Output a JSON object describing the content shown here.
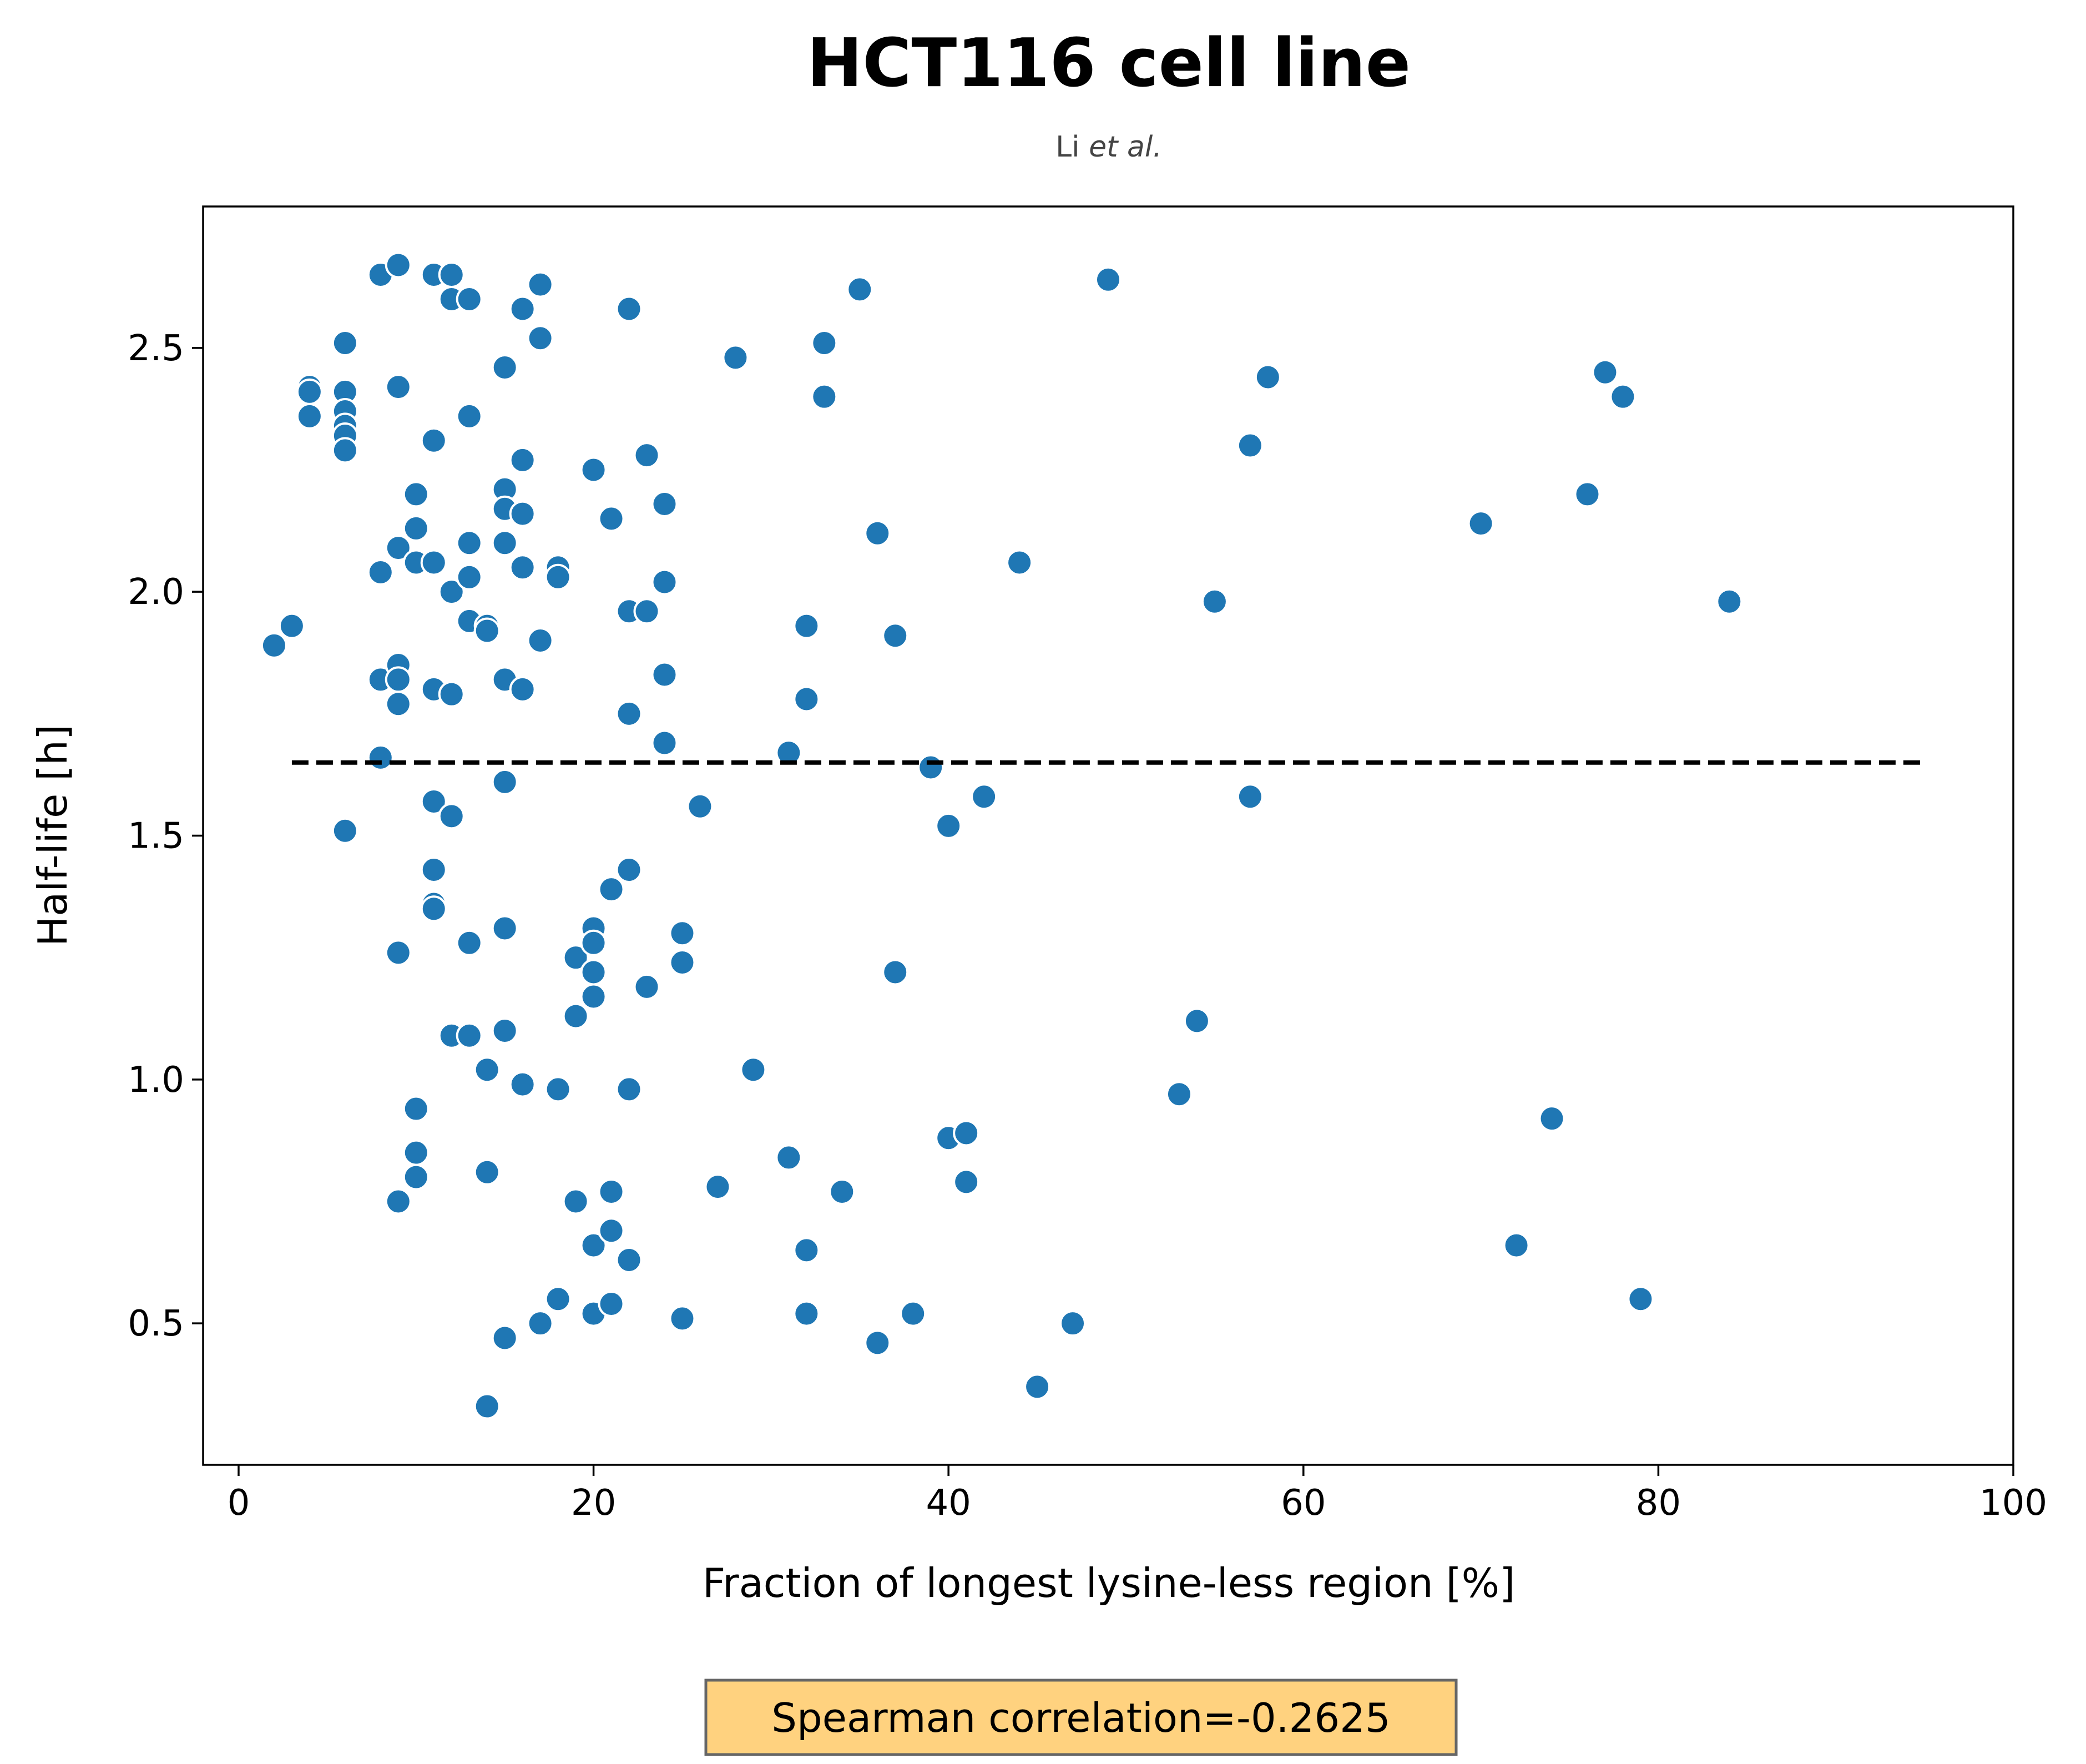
{
  "chart_data": {
    "type": "scatter",
    "title": "HCT116 cell line",
    "subtitle_plain": "Li ",
    "subtitle_italic": "et al.",
    "xlabel": "Fraction of longest lysine-less region [%]",
    "ylabel": "Half-life [h]",
    "xlim": [
      -2,
      100
    ],
    "ylim": [
      0.21,
      2.79
    ],
    "xticks": [
      0,
      20,
      40,
      60,
      80,
      100
    ],
    "yticks": [
      0.5,
      1.0,
      1.5,
      2.0,
      2.5
    ],
    "xtick_labels": [
      "0",
      "20",
      "40",
      "60",
      "80",
      "100"
    ],
    "ytick_labels": [
      "0.5",
      "1.0",
      "1.5",
      "2.0",
      "2.5"
    ],
    "grid": false,
    "point_color": "#1f77b4",
    "reference_line": {
      "style": "dashed",
      "color": "#000000",
      "x": [
        3,
        95
      ],
      "y": 1.65
    },
    "annotation": {
      "text": "Spearman correlation=-0.2625",
      "background": "#ffd27f",
      "border": "#666666"
    },
    "points": [
      [
        2,
        1.89
      ],
      [
        3,
        1.93
      ],
      [
        4,
        2.42
      ],
      [
        4,
        2.41
      ],
      [
        4,
        2.36
      ],
      [
        6,
        2.51
      ],
      [
        6,
        2.41
      ],
      [
        6,
        2.37
      ],
      [
        6,
        2.34
      ],
      [
        6,
        2.32
      ],
      [
        6,
        2.29
      ],
      [
        6,
        1.51
      ],
      [
        8,
        2.65
      ],
      [
        8,
        2.04
      ],
      [
        8,
        1.82
      ],
      [
        8,
        1.66
      ],
      [
        9,
        2.67
      ],
      [
        9,
        2.42
      ],
      [
        9,
        2.09
      ],
      [
        9,
        1.85
      ],
      [
        9,
        1.82
      ],
      [
        9,
        1.77
      ],
      [
        9,
        1.26
      ],
      [
        9,
        0.75
      ],
      [
        10,
        2.2
      ],
      [
        10,
        2.13
      ],
      [
        10,
        2.06
      ],
      [
        10,
        0.94
      ],
      [
        10,
        0.85
      ],
      [
        10,
        0.8
      ],
      [
        11,
        2.65
      ],
      [
        11,
        2.31
      ],
      [
        11,
        2.06
      ],
      [
        11,
        1.8
      ],
      [
        11,
        1.57
      ],
      [
        11,
        1.43
      ],
      [
        11,
        1.36
      ],
      [
        11,
        1.35
      ],
      [
        12,
        2.65
      ],
      [
        12,
        2.6
      ],
      [
        12,
        2.0
      ],
      [
        12,
        1.79
      ],
      [
        12,
        1.54
      ],
      [
        12,
        1.09
      ],
      [
        13,
        2.6
      ],
      [
        13,
        2.36
      ],
      [
        13,
        2.1
      ],
      [
        13,
        2.03
      ],
      [
        13,
        1.94
      ],
      [
        13,
        1.28
      ],
      [
        13,
        1.09
      ],
      [
        14,
        1.93
      ],
      [
        14,
        1.92
      ],
      [
        14,
        1.02
      ],
      [
        14,
        0.81
      ],
      [
        14,
        0.33
      ],
      [
        15,
        2.46
      ],
      [
        15,
        2.21
      ],
      [
        15,
        2.17
      ],
      [
        15,
        2.1
      ],
      [
        15,
        1.82
      ],
      [
        15,
        1.61
      ],
      [
        15,
        1.31
      ],
      [
        15,
        1.1
      ],
      [
        15,
        0.47
      ],
      [
        16,
        2.58
      ],
      [
        16,
        2.27
      ],
      [
        16,
        2.16
      ],
      [
        16,
        2.05
      ],
      [
        16,
        1.8
      ],
      [
        16,
        0.99
      ],
      [
        17,
        2.63
      ],
      [
        17,
        2.52
      ],
      [
        17,
        1.9
      ],
      [
        17,
        0.5
      ],
      [
        18,
        2.05
      ],
      [
        18,
        2.03
      ],
      [
        18,
        0.98
      ],
      [
        18,
        0.55
      ],
      [
        19,
        1.25
      ],
      [
        19,
        1.13
      ],
      [
        19,
        0.75
      ],
      [
        20,
        2.25
      ],
      [
        20,
        1.31
      ],
      [
        20,
        1.28
      ],
      [
        20,
        1.22
      ],
      [
        20,
        1.17
      ],
      [
        20,
        0.66
      ],
      [
        20,
        0.52
      ],
      [
        21,
        2.15
      ],
      [
        21,
        1.39
      ],
      [
        21,
        0.77
      ],
      [
        21,
        0.69
      ],
      [
        21,
        0.54
      ],
      [
        22,
        2.58
      ],
      [
        22,
        1.96
      ],
      [
        22,
        1.75
      ],
      [
        22,
        1.43
      ],
      [
        22,
        0.98
      ],
      [
        22,
        0.63
      ],
      [
        23,
        2.28
      ],
      [
        23,
        1.96
      ],
      [
        23,
        1.19
      ],
      [
        24,
        2.18
      ],
      [
        24,
        2.02
      ],
      [
        24,
        1.83
      ],
      [
        24,
        1.69
      ],
      [
        25,
        1.3
      ],
      [
        25,
        1.24
      ],
      [
        25,
        0.51
      ],
      [
        26,
        1.56
      ],
      [
        27,
        0.78
      ],
      [
        28,
        2.48
      ],
      [
        29,
        1.02
      ],
      [
        31,
        1.67
      ],
      [
        31,
        0.84
      ],
      [
        32,
        1.93
      ],
      [
        32,
        1.78
      ],
      [
        32,
        0.65
      ],
      [
        32,
        0.52
      ],
      [
        33,
        2.51
      ],
      [
        33,
        2.4
      ],
      [
        34,
        0.77
      ],
      [
        35,
        2.62
      ],
      [
        36,
        2.12
      ],
      [
        36,
        0.46
      ],
      [
        37,
        1.91
      ],
      [
        37,
        1.22
      ],
      [
        38,
        0.52
      ],
      [
        39,
        1.64
      ],
      [
        40,
        1.52
      ],
      [
        40,
        0.88
      ],
      [
        41,
        0.89
      ],
      [
        41,
        0.79
      ],
      [
        42,
        1.58
      ],
      [
        44,
        2.06
      ],
      [
        45,
        0.37
      ],
      [
        47,
        0.5
      ],
      [
        49,
        2.64
      ],
      [
        53,
        0.97
      ],
      [
        54,
        1.12
      ],
      [
        55,
        1.98
      ],
      [
        57,
        2.3
      ],
      [
        57,
        1.58
      ],
      [
        58,
        2.44
      ],
      [
        70,
        2.14
      ],
      [
        72,
        0.66
      ],
      [
        74,
        0.92
      ],
      [
        76,
        2.2
      ],
      [
        77,
        2.45
      ],
      [
        78,
        2.4
      ],
      [
        79,
        0.55
      ],
      [
        84,
        1.98
      ]
    ]
  }
}
